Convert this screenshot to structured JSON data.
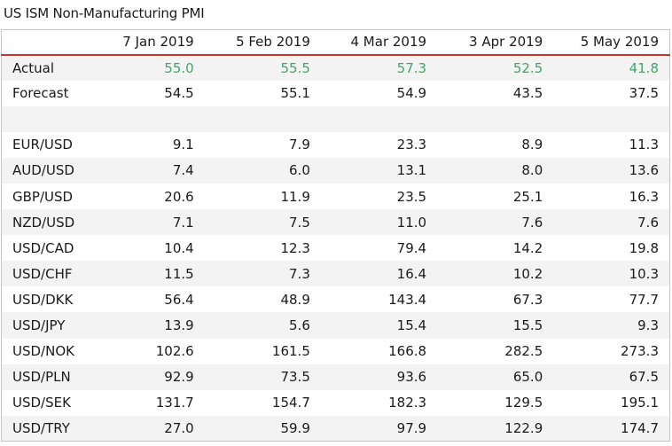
{
  "title": "US ISM Non-Manufacturing PMI",
  "colors": {
    "actual": "#3fa56a",
    "header_rule": "#c0392b"
  },
  "chart_data": {
    "type": "table",
    "title": "US ISM Non-Manufacturing PMI",
    "columns": [
      "7 Jan 2019",
      "5 Feb 2019",
      "4 Mar 2019",
      "3 Apr 2019",
      "5 May 2019"
    ],
    "rows": [
      {
        "label": "Actual",
        "values": [
          "55.0",
          "55.5",
          "57.3",
          "52.5",
          "41.8"
        ],
        "highlight": true
      },
      {
        "label": "Forecast",
        "values": [
          "54.5",
          "55.1",
          "54.9",
          "43.5",
          "37.5"
        ]
      },
      {
        "label": "",
        "values": [
          "",
          "",
          "",
          "",
          ""
        ]
      },
      {
        "label": "EUR/USD",
        "values": [
          "9.1",
          "7.9",
          "23.3",
          "8.9",
          "11.3"
        ]
      },
      {
        "label": "AUD/USD",
        "values": [
          "7.4",
          "6.0",
          "13.1",
          "8.0",
          "13.6"
        ]
      },
      {
        "label": "GBP/USD",
        "values": [
          "20.6",
          "11.9",
          "23.5",
          "25.1",
          "16.3"
        ]
      },
      {
        "label": "NZD/USD",
        "values": [
          "7.1",
          "7.5",
          "11.0",
          "7.6",
          "7.6"
        ]
      },
      {
        "label": "USD/CAD",
        "values": [
          "10.4",
          "12.3",
          "79.4",
          "14.2",
          "19.8"
        ]
      },
      {
        "label": "USD/CHF",
        "values": [
          "11.5",
          "7.3",
          "16.4",
          "10.2",
          "10.3"
        ]
      },
      {
        "label": "USD/DKK",
        "values": [
          "56.4",
          "48.9",
          "143.4",
          "67.3",
          "77.7"
        ]
      },
      {
        "label": "USD/JPY",
        "values": [
          "13.9",
          "5.6",
          "15.4",
          "15.5",
          "9.3"
        ]
      },
      {
        "label": "USD/NOK",
        "values": [
          "102.6",
          "161.5",
          "166.8",
          "282.5",
          "273.3"
        ]
      },
      {
        "label": "USD/PLN",
        "values": [
          "92.9",
          "73.5",
          "93.6",
          "65.0",
          "67.5"
        ]
      },
      {
        "label": "USD/SEK",
        "values": [
          "131.7",
          "154.7",
          "182.3",
          "129.5",
          "195.1"
        ]
      },
      {
        "label": "USD/TRY",
        "values": [
          "27.0",
          "59.9",
          "97.9",
          "122.9",
          "174.7"
        ]
      }
    ]
  }
}
